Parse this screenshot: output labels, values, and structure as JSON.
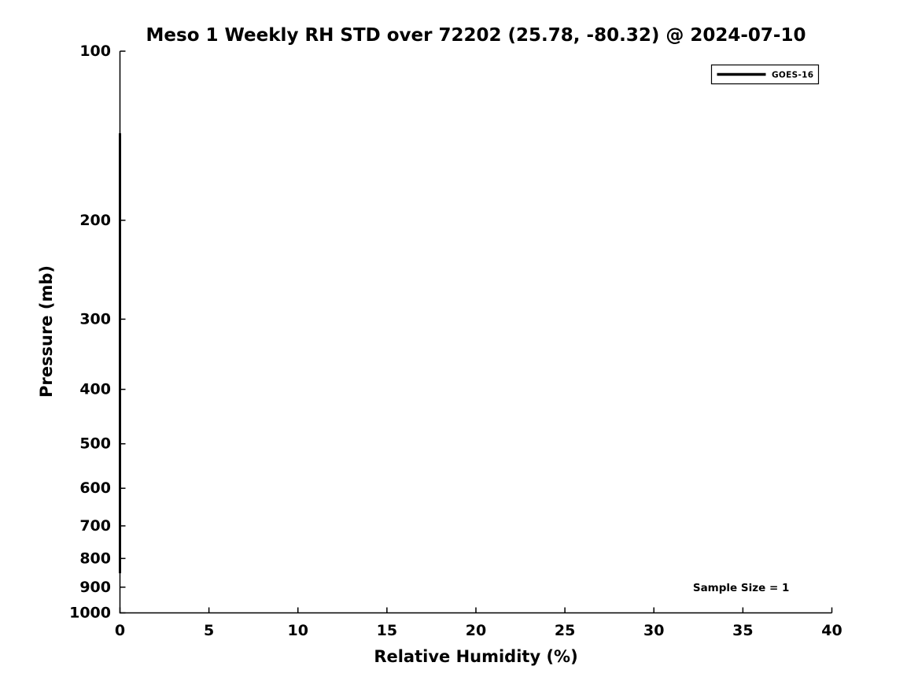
{
  "chart_data": {
    "type": "line",
    "title": "Meso 1 Weekly RH STD over 72202 (25.78, -80.32) @ 2024-07-10",
    "xlabel": "Relative Humidity (%)",
    "ylabel": "Pressure (mb)",
    "xlim": [
      0,
      40
    ],
    "x_ticks": [
      0,
      5,
      10,
      15,
      20,
      25,
      30,
      35,
      40
    ],
    "ylim": [
      1000,
      100
    ],
    "y_ticks": [
      100,
      200,
      300,
      400,
      500,
      600,
      700,
      800,
      900,
      1000
    ],
    "y_scale": "log",
    "y_axis_inverted": true,
    "grid": false,
    "legend": {
      "position": "upper-right",
      "entries": [
        {
          "label": "GOES-16",
          "color": "#000000",
          "line_width": 3
        }
      ]
    },
    "series": [
      {
        "name": "GOES-16",
        "color": "#000000",
        "line_width": 3,
        "description": "Vertical line at RH STD = 0% spanning approximately 140 mb to 850 mb",
        "points": [
          {
            "rh_std_percent": 0,
            "pressure_mb": 140
          },
          {
            "rh_std_percent": 0,
            "pressure_mb": 850
          }
        ]
      }
    ],
    "annotations": [
      {
        "text": "Sample Size = 1",
        "x": 34.9,
        "pressure_mb": 900
      }
    ]
  },
  "colors": {
    "foreground": "#000000",
    "background": "#ffffff"
  }
}
